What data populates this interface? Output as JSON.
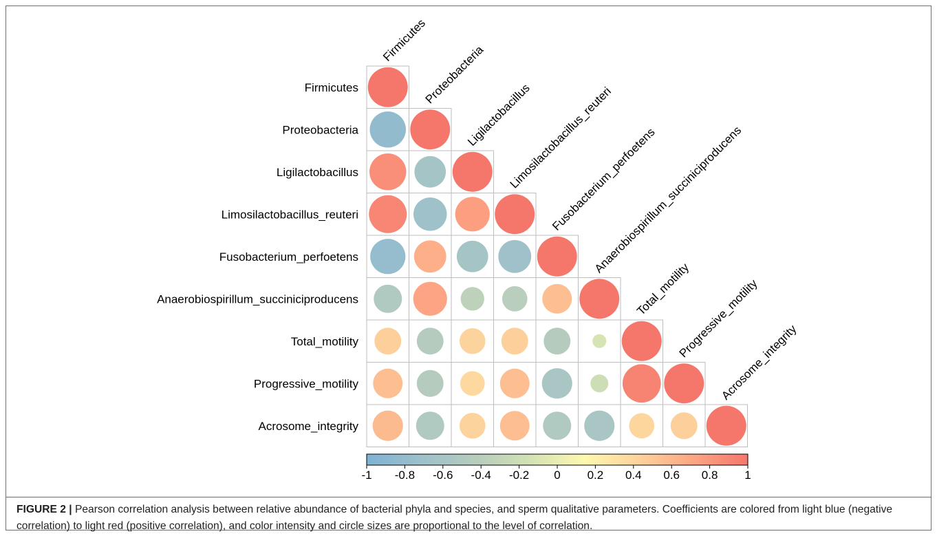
{
  "chart_data": {
    "type": "heatmap",
    "variables": [
      "Firmicutes",
      "Proteobacteria",
      "Ligilactobacillus",
      "Limosilactobacillus_reuteri",
      "Fusobacterium_perfoetens",
      "Anaerobiospirillum_succiniciproducens",
      "Total_motility",
      "Progressive_motility",
      "Acrosome_integrity"
    ],
    "matrix": [
      [
        1.0
      ],
      [
        -0.82,
        1.0
      ],
      [
        0.85,
        -0.62,
        1.0
      ],
      [
        0.9,
        -0.7,
        0.75,
        1.0
      ],
      [
        -0.78,
        0.65,
        -0.62,
        -0.68,
        1.0
      ],
      [
        -0.5,
        0.72,
        -0.35,
        -0.4,
        0.55,
        1.0
      ],
      [
        0.45,
        -0.45,
        0.42,
        0.45,
        -0.45,
        -0.12,
        1.0
      ],
      [
        0.55,
        -0.45,
        0.38,
        0.55,
        -0.58,
        -0.2,
        0.92,
        1.0
      ],
      [
        0.58,
        -0.5,
        0.42,
        0.55,
        -0.5,
        -0.58,
        0.4,
        0.45,
        1.0
      ]
    ],
    "legend_ticks": [
      "-1",
      "-0.8",
      "-0.6",
      "-0.4",
      "-0.2",
      "0",
      "0.2",
      "0.4",
      "0.6",
      "0.8",
      "1"
    ],
    "color_range": [
      -1,
      1
    ],
    "color_scale": [
      "#7fb2d4",
      "#9dc0cb",
      "#b6ccbd",
      "#d3e2b4",
      "#fef8b0",
      "#fdd29c",
      "#fca583",
      "#f5776c"
    ],
    "layout": "lower-triangle with circles",
    "legend_placement": "bottom"
  },
  "caption": {
    "label": "FIGURE 2 |",
    "text": " Pearson correlation analysis between relative abundance of bacterial phyla and species, and sperm qualitative parameters. Coefficients are colored from light blue (negative correlation) to light red (positive correlation), and color intensity and circle sizes are proportional to the level of correlation."
  }
}
